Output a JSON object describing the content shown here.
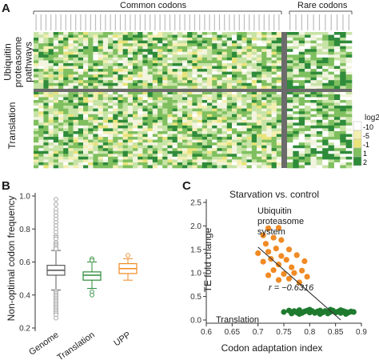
{
  "panels": {
    "A": {
      "letter": "A",
      "group_common": "Common codons",
      "group_rare": "Rare codons",
      "row_group_upp": "Ubiquitin proteasome pathways",
      "row_group_upp_lines": [
        "Ubiquitin",
        "proteasome",
        "pathways"
      ],
      "row_group_translation": "Translation",
      "legend_title": "log2",
      "legend_ticks": [
        "-10",
        "-5",
        "-1",
        "1",
        "2"
      ],
      "colors": {
        "dark_green": "#2e8b3a",
        "mid_green": "#7fbf5f",
        "light_green": "#c7e3a6",
        "pale": "#f2f4e0",
        "yellow": "#e9e37a",
        "light_yellow": "#f3efb0",
        "divider": "#6b6b6b"
      }
    },
    "B": {
      "letter": "B",
      "ylabel": "Non-optimal codon frequency",
      "yticks": [
        "1.0",
        "0.8",
        "0.6",
        "0.4",
        "0.2"
      ],
      "categories": [
        "Genome",
        "Translation",
        "UPP"
      ]
    },
    "C": {
      "letter": "C",
      "title": "Starvation vs. control",
      "xlabel": "Codon adaptation index",
      "ylabel": "TE fold change",
      "xticks": [
        "0.6",
        "0.65",
        "0.7",
        "0.75",
        "0.8",
        "0.85",
        "0.9"
      ],
      "yticks": [
        "2.5",
        "2.0",
        "1.5",
        "1.0",
        "0.5",
        "0.0"
      ],
      "annotation_upp_lines": [
        "Ubiquitin",
        "proteasome",
        "system"
      ],
      "annotation_translation": "Translation",
      "annotation_r": "r = −0.6316"
    }
  },
  "chart_data": [
    {
      "type": "heatmap",
      "title": "",
      "column_groups": [
        {
          "name": "Common codons",
          "count": 50
        },
        {
          "name": "Rare codons",
          "count": 11
        }
      ],
      "row_groups": [
        {
          "name": "Ubiquitin proteasome pathways"
        },
        {
          "name": "Translation"
        }
      ],
      "colorbar": {
        "label": "log2",
        "ticks": [
          -10,
          -5,
          -1,
          1,
          2
        ],
        "low_color": "#e9e37a",
        "high_color": "#2e8b3a"
      }
    },
    {
      "type": "box",
      "ylabel": "Non-optimal codon frequency",
      "ylim": [
        0.2,
        1.0
      ],
      "categories": [
        "Genome",
        "Translation",
        "UPP"
      ],
      "series": [
        {
          "category": "Genome",
          "color": "#5a5a5a",
          "whisker_low": 0.43,
          "q1": 0.52,
          "median": 0.55,
          "q3": 0.58,
          "whisker_high": 0.67,
          "outliers": [
            0.98,
            0.95,
            0.92,
            0.9,
            0.88,
            0.86,
            0.84,
            0.82,
            0.8,
            0.78,
            0.76,
            0.75,
            0.74,
            0.72,
            0.71,
            0.7,
            0.69,
            0.68,
            0.42,
            0.41,
            0.4,
            0.39,
            0.38,
            0.37,
            0.36,
            0.35,
            0.34,
            0.33,
            0.32,
            0.31,
            0.3,
            0.29,
            0.28,
            0.26
          ]
        },
        {
          "category": "Translation",
          "color": "#2e8b3a",
          "whisker_low": 0.44,
          "q1": 0.49,
          "median": 0.52,
          "q3": 0.54,
          "whisker_high": 0.6,
          "outliers": [
            0.62,
            0.61,
            0.42,
            0.4
          ]
        },
        {
          "category": "UPP",
          "color": "#f08a24",
          "whisker_low": 0.49,
          "q1": 0.53,
          "median": 0.56,
          "q3": 0.59,
          "whisker_high": 0.62,
          "outliers": [
            0.64
          ]
        }
      ]
    },
    {
      "type": "scatter",
      "title": "Starvation vs. control",
      "xlabel": "Codon adaptation index",
      "ylabel": "TE fold change",
      "xlim": [
        0.6,
        0.9
      ],
      "ylim": [
        0.0,
        2.5
      ],
      "series": [
        {
          "name": "Ubiquitin proteasome system",
          "color": "#f08a24",
          "points": [
            [
              0.72,
              1.95
            ],
            [
              0.74,
              1.96
            ],
            [
              0.71,
              1.8
            ],
            [
              0.73,
              1.75
            ],
            [
              0.745,
              1.7
            ],
            [
              0.715,
              1.62
            ],
            [
              0.735,
              1.52
            ],
            [
              0.76,
              1.5
            ],
            [
              0.72,
              1.45
            ],
            [
              0.7,
              1.42
            ],
            [
              0.745,
              1.36
            ],
            [
              0.775,
              1.38
            ],
            [
              0.725,
              1.3
            ],
            [
              0.755,
              1.28
            ],
            [
              0.79,
              1.25
            ],
            [
              0.71,
              1.24
            ],
            [
              0.74,
              1.18
            ],
            [
              0.765,
              1.12
            ],
            [
              0.73,
              1.06
            ],
            [
              0.785,
              1.05
            ],
            [
              0.75,
              0.98
            ],
            [
              0.72,
              0.95
            ],
            [
              0.795,
              0.92
            ],
            [
              0.76,
              0.88
            ],
            [
              0.74,
              0.85
            ],
            [
              0.78,
              0.8
            ],
            [
              0.77,
              1.0
            ]
          ]
        },
        {
          "name": "Translation",
          "color": "#1e7a2e",
          "points": [
            [
              0.75,
              0.17
            ],
            [
              0.76,
              0.2
            ],
            [
              0.765,
              0.14
            ],
            [
              0.77,
              0.19
            ],
            [
              0.775,
              0.16
            ],
            [
              0.78,
              0.21
            ],
            [
              0.785,
              0.15
            ],
            [
              0.79,
              0.18
            ],
            [
              0.795,
              0.2
            ],
            [
              0.8,
              0.16
            ],
            [
              0.805,
              0.19
            ],
            [
              0.81,
              0.15
            ],
            [
              0.815,
              0.18
            ],
            [
              0.82,
              0.2
            ],
            [
              0.825,
              0.16
            ],
            [
              0.83,
              0.19
            ],
            [
              0.835,
              0.14
            ],
            [
              0.84,
              0.17
            ],
            [
              0.845,
              0.2
            ],
            [
              0.85,
              0.16
            ],
            [
              0.855,
              0.18
            ],
            [
              0.86,
              0.15
            ],
            [
              0.865,
              0.19
            ],
            [
              0.87,
              0.17
            ],
            [
              0.875,
              0.16
            ],
            [
              0.88,
              0.18
            ],
            [
              0.885,
              0.17
            ],
            [
              0.78,
              0.13
            ],
            [
              0.8,
              0.22
            ],
            [
              0.82,
              0.13
            ],
            [
              0.84,
              0.22
            ],
            [
              0.86,
              0.21
            ],
            [
              0.87,
              0.13
            ]
          ]
        }
      ],
      "trendline": {
        "x": [
          0.7,
          0.86
        ],
        "y": [
          1.55,
          0.0
        ]
      },
      "annotations": [
        "Ubiquitin proteasome system",
        "r = −0.6316",
        "Translation"
      ]
    }
  ]
}
